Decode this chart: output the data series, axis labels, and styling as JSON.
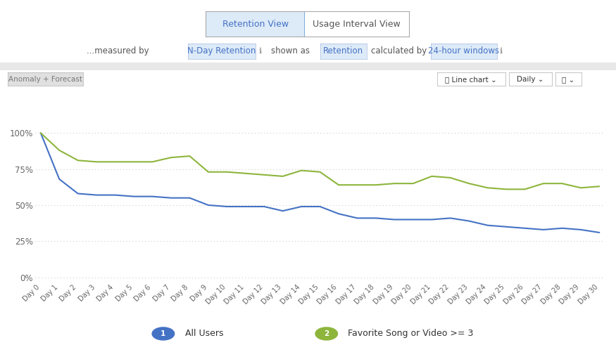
{
  "blue_line": [
    100,
    68,
    58,
    57,
    57,
    56,
    56,
    55,
    55,
    50,
    49,
    49,
    49,
    46,
    49,
    49,
    44,
    41,
    41,
    40,
    40,
    40,
    41,
    39,
    36,
    35,
    34,
    33,
    34,
    33,
    31
  ],
  "green_line": [
    100,
    88,
    81,
    80,
    80,
    80,
    80,
    83,
    84,
    73,
    73,
    72,
    71,
    70,
    74,
    73,
    64,
    64,
    64,
    65,
    65,
    70,
    69,
    65,
    62,
    61,
    61,
    65,
    65,
    62,
    63
  ],
  "x_labels": [
    "Day 0",
    "Day 1",
    "Day 2",
    "Day 3",
    "Day 4",
    "Day 5",
    "Day 6",
    "Day 7",
    "Day 8",
    "Day 9",
    "Day 10",
    "Day 11",
    "Day 12",
    "Day 13",
    "Day 14",
    "Day 15",
    "Day 16",
    "Day 17",
    "Day 18",
    "Day 19",
    "Day 20",
    "Day 21",
    "Day 22",
    "Day 23",
    "Day 24",
    "Day 25",
    "Day 26",
    "Day 27",
    "Day 28",
    "Day 29",
    "Day 30"
  ],
  "blue_color": "#4472C4",
  "green_color": "#8DB53C",
  "background_color": "#ffffff",
  "plot_bg_color": "#ffffff",
  "grid_color": "#cccccc",
  "yticks": [
    0,
    25,
    50,
    75,
    100
  ],
  "ytick_labels": [
    "0%",
    "25%",
    "50%",
    "75%",
    "100%"
  ],
  "ylim": [
    -3,
    108
  ],
  "legend1_label": "All Users",
  "legend2_label": "Favorite Song or Video >= 3",
  "legend1_color": "#4472C4",
  "legend2_color": "#8DB53C",
  "line_width": 1.5,
  "toggle_left_text": "Retention View",
  "toggle_right_text": "Usage Interval View",
  "subheader_plain1": "...measured by",
  "subheader_tag1": "N-Day Retention",
  "subheader_plain2": "shown as",
  "subheader_tag2": "Retention",
  "subheader_plain3": "calculated by",
  "subheader_tag3": "24-hour windows",
  "anomaly_btn": "Anomaly + Forecast",
  "linechart_btn": "Line chart",
  "daily_btn": "Daily"
}
